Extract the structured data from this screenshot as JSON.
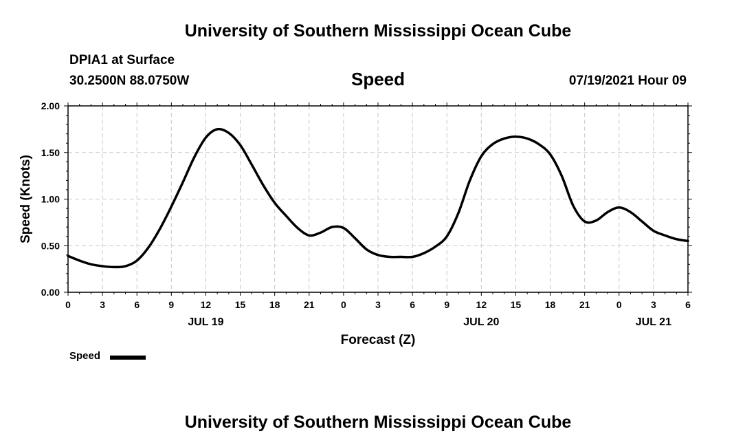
{
  "header": {
    "title": "University of Southern Mississippi Ocean Cube",
    "station": "DPIA1 at Surface",
    "coords": "30.2500N  88.0750W",
    "chart_title": "Speed",
    "datetime": "07/19/2021 Hour 09"
  },
  "footer": {
    "title": "University of Southern Mississippi Ocean Cube"
  },
  "legend": {
    "label": "Speed"
  },
  "chart_data": {
    "type": "line",
    "title": "Speed",
    "xlabel": "Forecast (Z)",
    "ylabel": "Speed (Knots)",
    "x_unit": "hours from 2021-07-19 00Z",
    "xlim": [
      0,
      54
    ],
    "ylim": [
      0,
      2.0
    ],
    "x_ticks": [
      0,
      3,
      6,
      9,
      12,
      15,
      18,
      21,
      24,
      27,
      30,
      33,
      36,
      39,
      42,
      45,
      48,
      51,
      54
    ],
    "x_tick_labels": [
      "0",
      "3",
      "6",
      "9",
      "12",
      "15",
      "18",
      "21",
      "0",
      "3",
      "6",
      "9",
      "12",
      "15",
      "18",
      "21",
      "0",
      "3",
      "6"
    ],
    "date_labels": [
      {
        "x": 12,
        "label": "JUL 19"
      },
      {
        "x": 36,
        "label": "JUL 20"
      },
      {
        "x": 51,
        "label": "JUL 21"
      }
    ],
    "y_ticks": [
      0,
      0.5,
      1.0,
      1.5,
      2.0
    ],
    "y_tick_labels": [
      "0.00",
      "0.50",
      "1.00",
      "1.50",
      "2.00"
    ],
    "grid": true,
    "color": "#000000",
    "series": [
      {
        "name": "Speed",
        "x": [
          0,
          1,
          2,
          3,
          4,
          5,
          6,
          7,
          8,
          9,
          10,
          11,
          12,
          13,
          14,
          15,
          16,
          17,
          18,
          19,
          20,
          21,
          22,
          23,
          24,
          25,
          26,
          27,
          28,
          29,
          30,
          31,
          32,
          33,
          34,
          35,
          36,
          37,
          38,
          39,
          40,
          41,
          42,
          43,
          44,
          45,
          46,
          47,
          48,
          49,
          50,
          51,
          52,
          53,
          54
        ],
        "y": [
          0.39,
          0.34,
          0.3,
          0.28,
          0.27,
          0.28,
          0.34,
          0.48,
          0.68,
          0.92,
          1.18,
          1.45,
          1.66,
          1.75,
          1.71,
          1.58,
          1.37,
          1.15,
          0.96,
          0.82,
          0.69,
          0.61,
          0.64,
          0.7,
          0.69,
          0.58,
          0.46,
          0.4,
          0.38,
          0.38,
          0.38,
          0.42,
          0.49,
          0.6,
          0.85,
          1.2,
          1.46,
          1.59,
          1.65,
          1.67,
          1.65,
          1.59,
          1.48,
          1.25,
          0.93,
          0.76,
          0.77,
          0.86,
          0.91,
          0.86,
          0.76,
          0.66,
          0.61,
          0.57,
          0.55
        ]
      }
    ]
  }
}
